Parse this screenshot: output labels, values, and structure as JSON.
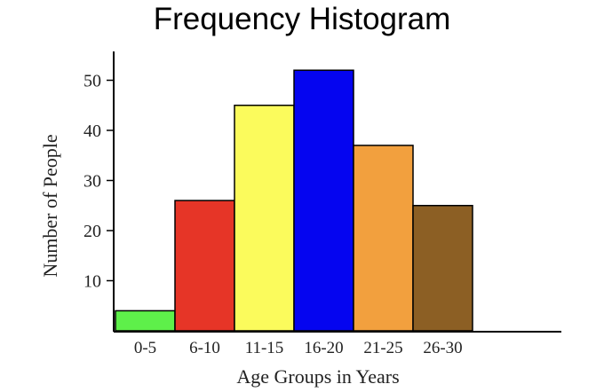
{
  "chart_data": {
    "type": "bar",
    "title": "Frequency Histogram",
    "xlabel": "Age Groups in Years",
    "ylabel": "Number of People",
    "categories": [
      "0-5",
      "6-10",
      "11-15",
      "16-20",
      "21-25",
      "26-30"
    ],
    "values": [
      4,
      26,
      45,
      52,
      37,
      25
    ],
    "colors": [
      "#5ef04a",
      "#e63527",
      "#fbfb5c",
      "#0505f0",
      "#f2a03e",
      "#8c5f24"
    ],
    "yticks": [
      10,
      20,
      30,
      40,
      50
    ],
    "ylim": [
      0,
      57
    ],
    "grid": false,
    "legend": "none"
  }
}
